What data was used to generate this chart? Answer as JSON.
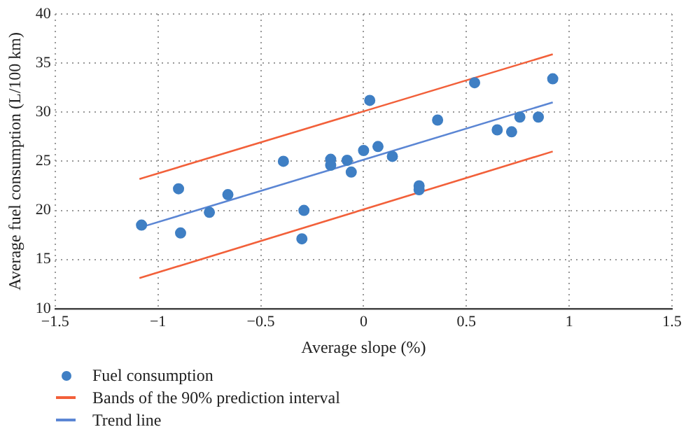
{
  "chart_data": {
    "type": "scatter",
    "xlabel": "Average slope (%)",
    "ylabel": "Average fuel consumption (L/100 km)",
    "xlim": [
      -1.5,
      1.5
    ],
    "ylim": [
      10,
      40
    ],
    "xticks": [
      -1.5,
      -1,
      -0.5,
      0,
      0.5,
      1,
      1.5
    ],
    "yticks": [
      10,
      15,
      20,
      25,
      30,
      35,
      40
    ],
    "grid": true,
    "legend": "bottom left",
    "series": [
      {
        "name": "Fuel consumption",
        "type": "scatter",
        "marker": "circle",
        "color": "#3f7fc4",
        "x": [
          -1.08,
          -0.9,
          -0.89,
          -0.75,
          -0.66,
          -0.39,
          -0.29,
          -0.3,
          -0.16,
          -0.16,
          -0.08,
          -0.06,
          0,
          0.03,
          0.07,
          0.14,
          0.27,
          0.27,
          0.36,
          0.54,
          0.65,
          0.72,
          0.76,
          0.85,
          0.92
        ],
        "values": [
          18.5,
          22.2,
          17.7,
          19.8,
          21.6,
          25,
          20,
          17.1,
          25.2,
          24.6,
          25.1,
          23.9,
          26.1,
          31.2,
          26.5,
          25.5,
          22.5,
          22.1,
          29.2,
          33,
          28.2,
          28,
          29.5,
          29.5,
          33.4
        ]
      },
      {
        "name": "Bands of the 90% prediction interval",
        "type": "line",
        "marker": "none",
        "color": "#f2603a",
        "x": [
          -1.09,
          0.92
        ],
        "values": [
          23.2,
          35.9
        ]
      },
      {
        "type": "line",
        "marker": "none",
        "color": "#f2603a",
        "x": [
          -1.09,
          0.92
        ],
        "values": [
          13.1,
          26
        ]
      },
      {
        "name": "Trend line",
        "type": "line",
        "marker": "none",
        "color": "#5b86d4",
        "x": [
          -1.08,
          0.92
        ],
        "values": [
          18.3,
          31
        ]
      }
    ]
  }
}
